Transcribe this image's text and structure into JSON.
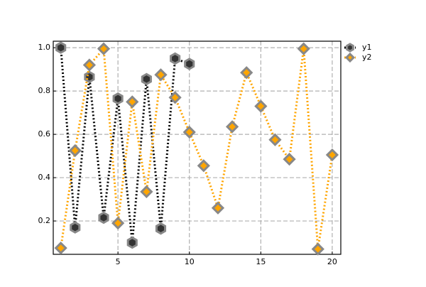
{
  "chart_data": {
    "type": "line",
    "series": [
      {
        "name": "y1",
        "color": "#000000",
        "marker": "hexagon",
        "x": [
          1,
          2,
          3,
          4,
          5,
          6,
          7,
          8,
          9,
          10
        ],
        "values": [
          1.0,
          0.17,
          0.865,
          0.215,
          0.765,
          0.1,
          0.855,
          0.165,
          0.95,
          0.925
        ]
      },
      {
        "name": "y2",
        "color": "#ffa500",
        "marker": "diamond",
        "x": [
          1,
          2,
          3,
          4,
          5,
          6,
          7,
          8,
          9,
          10,
          11,
          12,
          13,
          14,
          15,
          16,
          17,
          18,
          19,
          20
        ],
        "values": [
          0.075,
          0.525,
          0.92,
          0.995,
          0.19,
          0.75,
          0.335,
          0.875,
          0.77,
          0.61,
          0.455,
          0.26,
          0.635,
          0.885,
          0.73,
          0.575,
          0.485,
          0.995,
          0.07,
          0.505
        ]
      }
    ],
    "xlim": [
      0.47,
      20.6
    ],
    "xticks": [
      5,
      10,
      15,
      20
    ],
    "ylim": [
      0.046,
      1.03
    ],
    "yticks": [
      0.2,
      0.4,
      0.6,
      0.8,
      {
        "value": 1,
        "label": "1.0"
      }
    ],
    "grid": true,
    "legend": "outside-upper-right"
  }
}
